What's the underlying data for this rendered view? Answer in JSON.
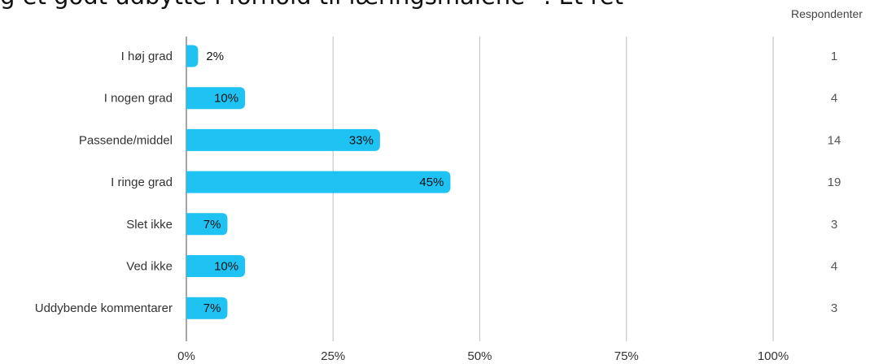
{
  "header": {
    "title": "g et godt udbytte i forhold til læringsmålene\" :   Et ret",
    "respondents_label": "Respondenter"
  },
  "colors": {
    "bar": "#1ec3f3",
    "grid": "#c8c8c8",
    "axis": "#888888"
  },
  "chart_data": {
    "type": "bar",
    "orientation": "horizontal",
    "categories": [
      "I høj grad",
      "I nogen grad",
      "Passende/middel",
      "I ringe grad",
      "Slet ikke",
      "Ved ikke",
      "Uddybende kommentarer"
    ],
    "values": [
      2,
      10,
      33,
      45,
      7,
      10,
      7
    ],
    "value_labels": [
      "2%",
      "10%",
      "33%",
      "45%",
      "7%",
      "10%",
      "7%"
    ],
    "respondents": [
      "1",
      "4",
      "14",
      "19",
      "3",
      "4",
      "3"
    ],
    "x_ticks": [
      "0%",
      "25%",
      "50%",
      "75%",
      "100%"
    ],
    "xlim": [
      0,
      100
    ],
    "grid": true
  }
}
